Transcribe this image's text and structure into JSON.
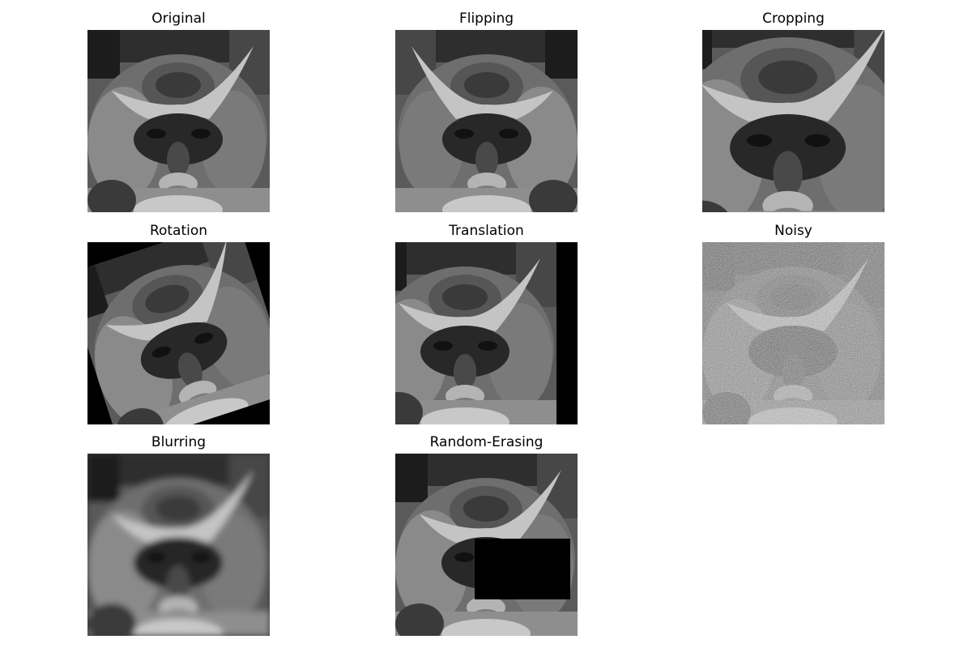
{
  "figure": {
    "panels": [
      {
        "id": "original",
        "title": "Original",
        "image": "monkey-face-original"
      },
      {
        "id": "flipping",
        "title": "Flipping",
        "image": "monkey-face-flipped"
      },
      {
        "id": "cropping",
        "title": "Cropping",
        "image": "monkey-face-cropped"
      },
      {
        "id": "rotation",
        "title": "Rotation",
        "image": "monkey-face-rotated"
      },
      {
        "id": "translation",
        "title": "Translation",
        "image": "monkey-face-translated"
      },
      {
        "id": "noisy",
        "title": "Noisy",
        "image": "monkey-face-noisy"
      },
      {
        "id": "blurring",
        "title": "Blurring",
        "image": "monkey-face-blurred"
      },
      {
        "id": "random-erasing",
        "title": "Random-Erasing",
        "image": "monkey-face-erased"
      }
    ],
    "colors": {
      "background": "#ffffff",
      "fill": "#000000",
      "text": "#000000"
    }
  }
}
